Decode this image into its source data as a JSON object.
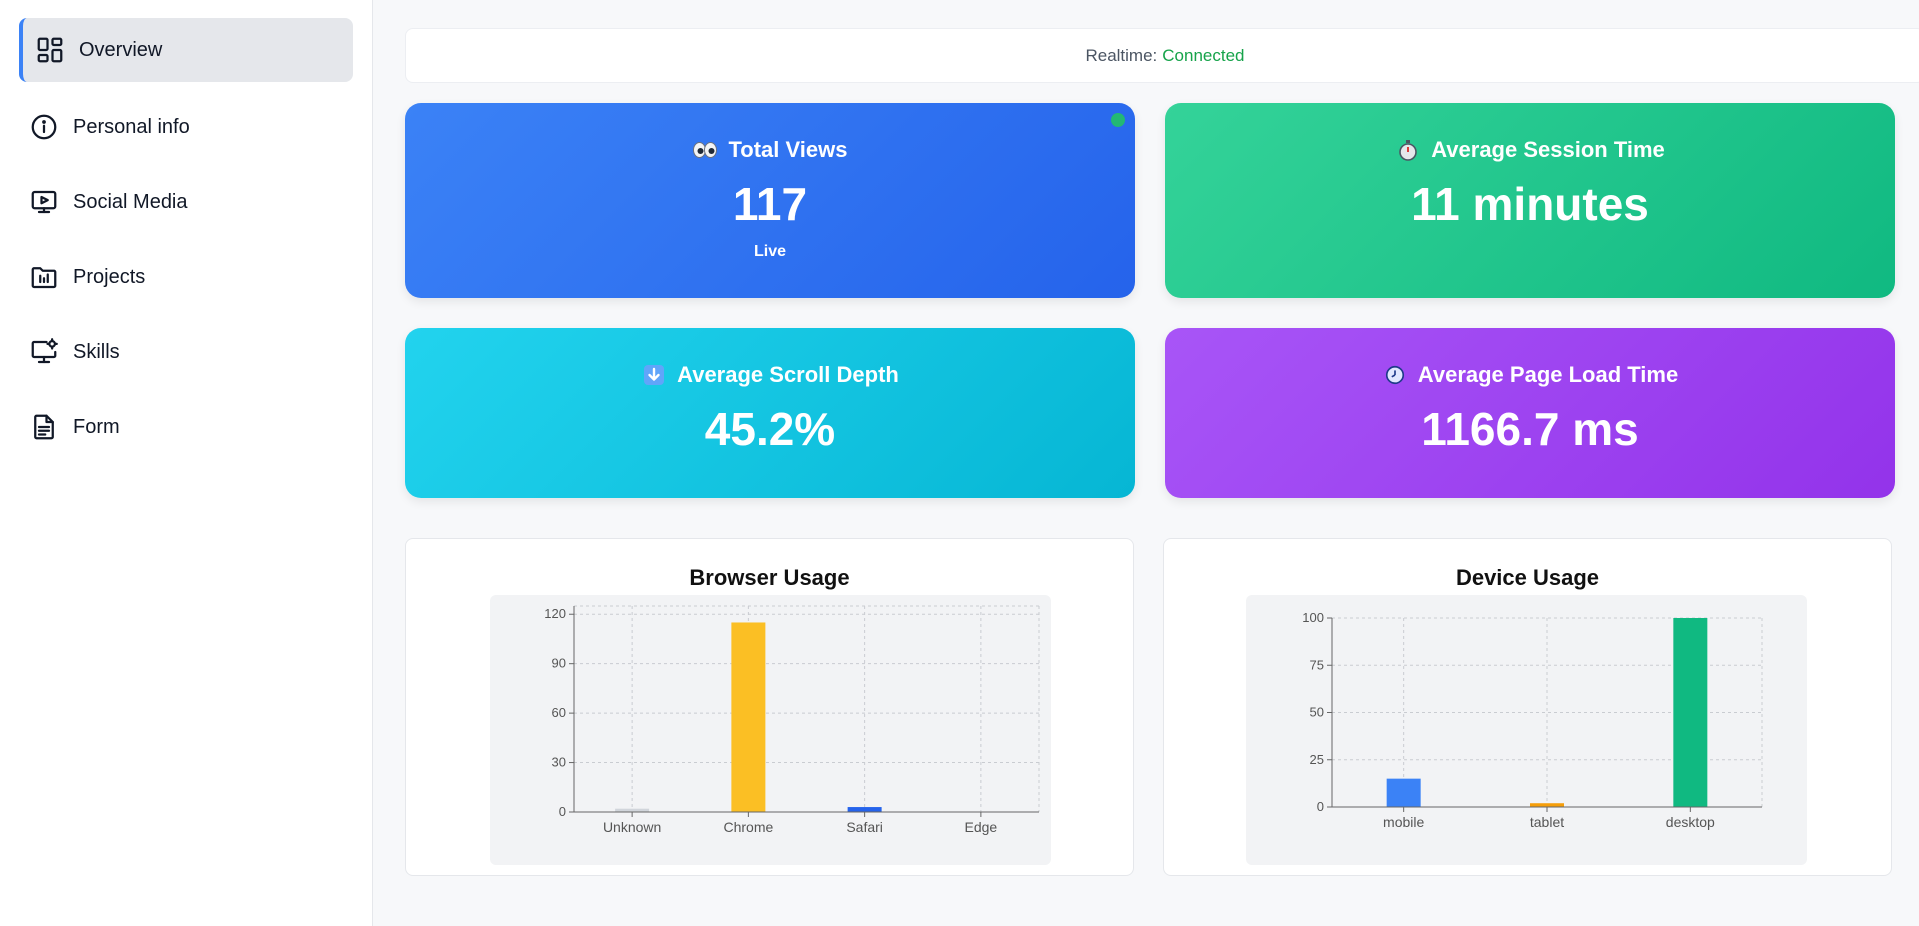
{
  "sidebar": {
    "items": [
      {
        "label": "Overview",
        "icon": "dashboard-icon",
        "active": true
      },
      {
        "label": "Personal info",
        "icon": "info-icon",
        "active": false
      },
      {
        "label": "Social Media",
        "icon": "monitor-play-icon",
        "active": false
      },
      {
        "label": "Projects",
        "icon": "folder-chart-icon",
        "active": false
      },
      {
        "label": "Skills",
        "icon": "monitor-gear-icon",
        "active": false
      },
      {
        "label": "Form",
        "icon": "document-icon",
        "active": false
      }
    ]
  },
  "realtime": {
    "label": "Realtime:",
    "status": "Connected",
    "status_color": "#16a34a"
  },
  "stats": {
    "total_views": {
      "title": "Total Views",
      "value": "117",
      "sub": "Live",
      "icon": "eyes-icon"
    },
    "session_time": {
      "title": "Average Session Time",
      "value": "11 minutes",
      "icon": "stopwatch-icon"
    },
    "scroll_depth": {
      "title": "Average Scroll Depth",
      "value": "45.2%",
      "icon": "down-arrow-icon"
    },
    "page_load": {
      "title": "Average Page Load Time",
      "value": "1166.7 ms",
      "icon": "clock-icon"
    }
  },
  "colors": {
    "blue": "#3b82f6",
    "green": "#10b981",
    "cyan": "#06b6d4",
    "purple": "#9333ea",
    "yellow": "#fbbf24",
    "orange": "#f59e0b",
    "gray": "#d1d5db",
    "accent": "#3b82f6"
  },
  "chart_data": [
    {
      "type": "bar",
      "title": "Browser Usage",
      "categories": [
        "Unknown",
        "Chrome",
        "Safari",
        "Edge"
      ],
      "values": [
        2,
        115,
        3,
        0
      ],
      "colors": [
        "#d1d5db",
        "#fbbf24",
        "#2563eb",
        "#9ca3af"
      ],
      "yticks": [
        0,
        30,
        60,
        90,
        120
      ],
      "ylim": [
        0,
        125
      ],
      "grid": true
    },
    {
      "type": "bar",
      "title": "Device Usage",
      "categories": [
        "mobile",
        "tablet",
        "desktop"
      ],
      "values": [
        15,
        2,
        100
      ],
      "colors": [
        "#3b82f6",
        "#f59e0b",
        "#10b981"
      ],
      "yticks": [
        0,
        25,
        50,
        75,
        100
      ],
      "ylim": [
        0,
        100
      ],
      "grid": true
    }
  ]
}
